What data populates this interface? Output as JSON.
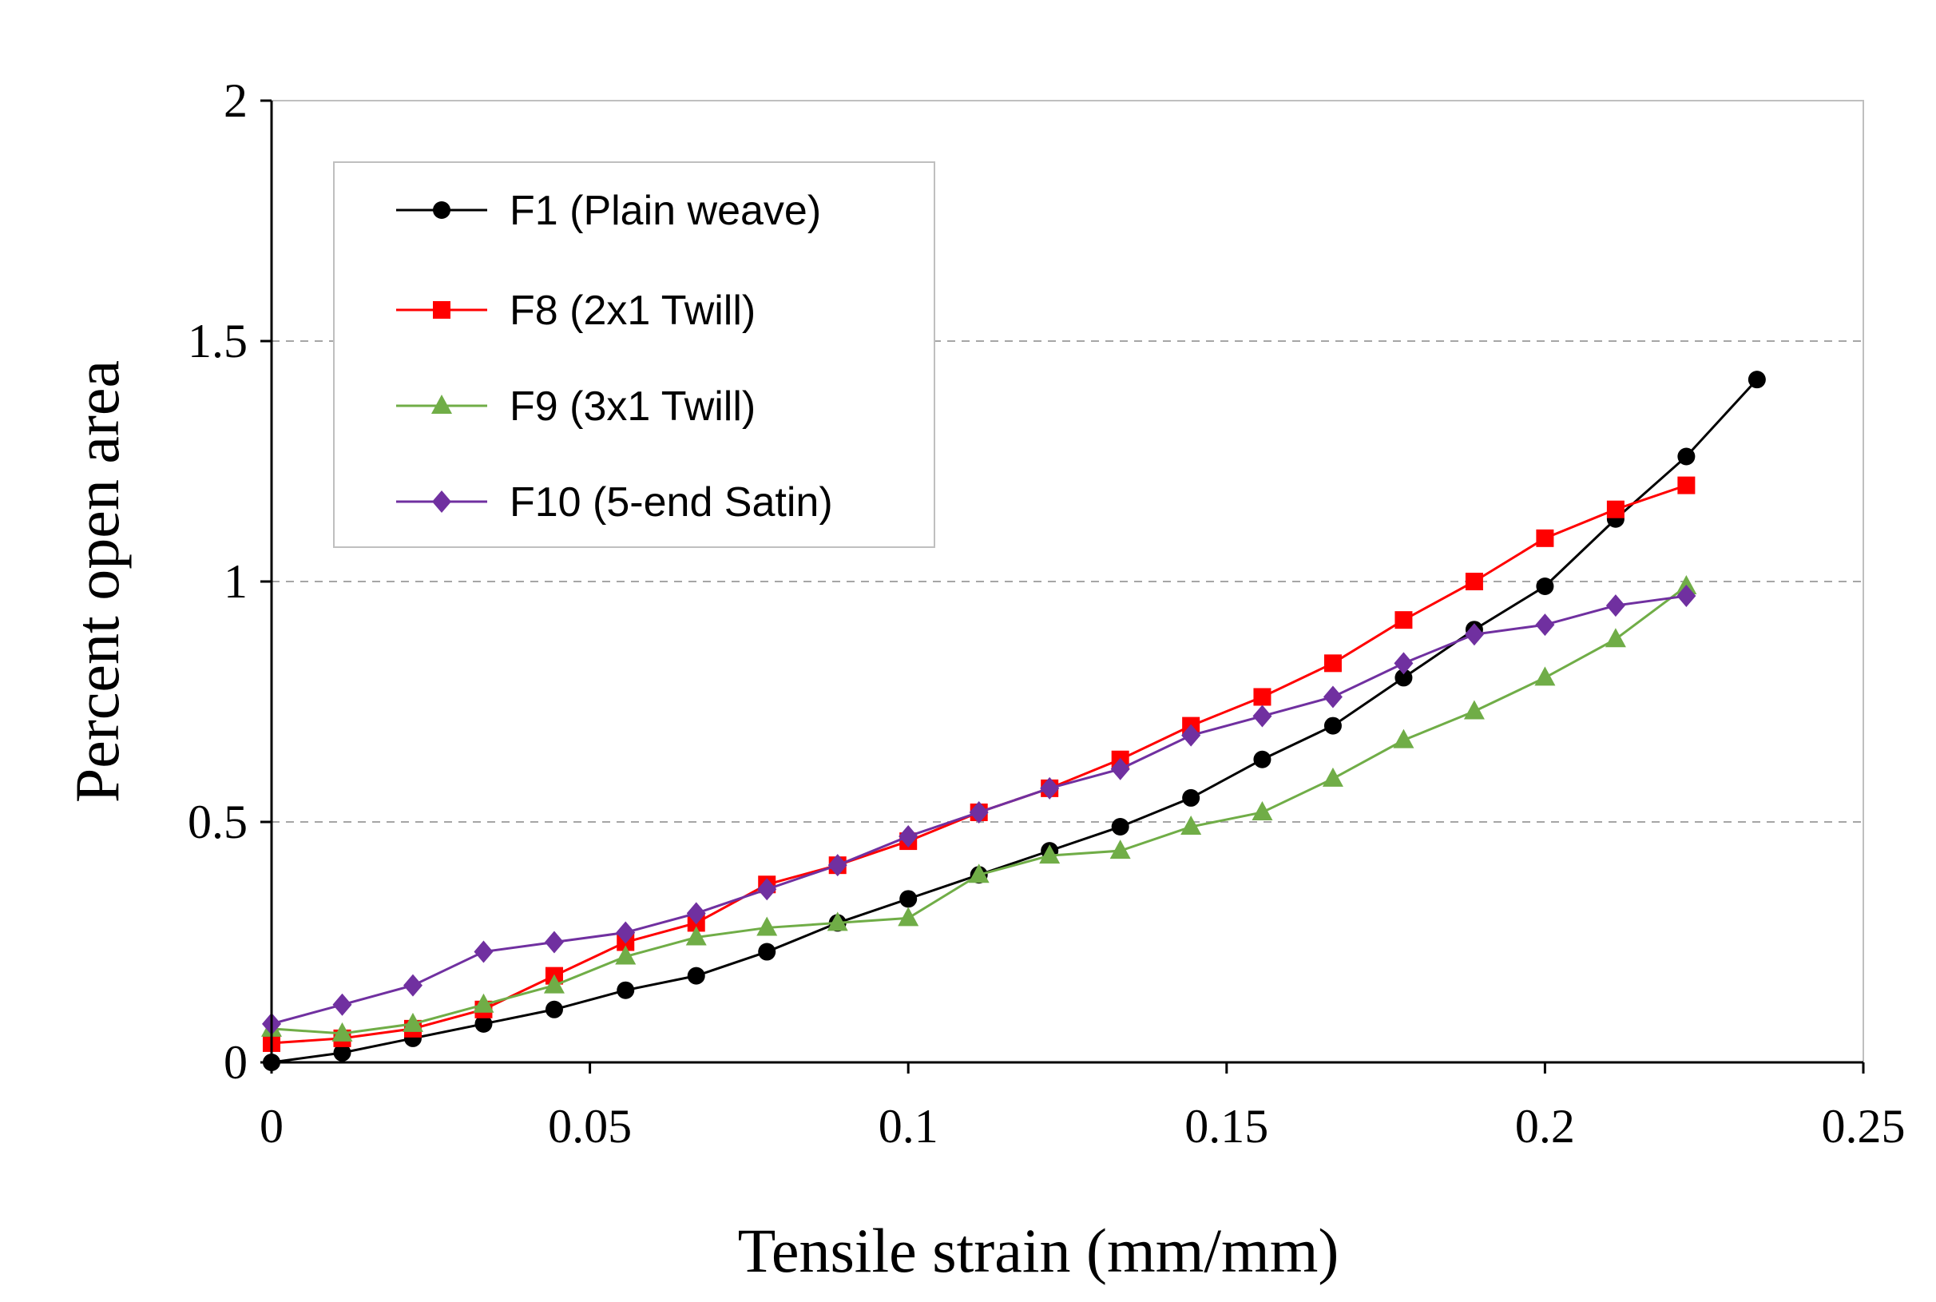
{
  "chart_data": {
    "type": "line",
    "title": "",
    "xlabel": "Tensile strain (mm/mm)",
    "ylabel": "Percent open area",
    "xlim": [
      0,
      0.25
    ],
    "ylim": [
      0,
      2
    ],
    "xticks": [
      0,
      0.05,
      0.1,
      0.15,
      0.2,
      0.25
    ],
    "xtick_labels": [
      "0",
      "0.05",
      "0.1",
      "0.15",
      "0.2",
      "0.25"
    ],
    "yticks": [
      0,
      0.5,
      1,
      1.5,
      2
    ],
    "ytick_labels": [
      "0",
      "0.5",
      "1",
      "1.5",
      "2"
    ],
    "grid": "horizontal dashed at 0.5, 1, 1.5",
    "legend_position": "top-left",
    "series": [
      {
        "name": "F1 (Plain weave)",
        "color": "#000000",
        "marker": "circle",
        "x": [
          0,
          0.0111,
          0.0222,
          0.0333,
          0.0444,
          0.0556,
          0.0667,
          0.0778,
          0.0889,
          0.1,
          0.1111,
          0.1222,
          0.1333,
          0.1444,
          0.1556,
          0.1667,
          0.1778,
          0.1889,
          0.2,
          0.2111,
          0.2222,
          0.2333
        ],
        "y": [
          0.0,
          0.02,
          0.05,
          0.08,
          0.11,
          0.15,
          0.18,
          0.23,
          0.29,
          0.34,
          0.39,
          0.44,
          0.49,
          0.55,
          0.63,
          0.7,
          0.8,
          0.9,
          0.99,
          1.13,
          1.26,
          1.42
        ]
      },
      {
        "name": "F8 (2x1 Twill)",
        "color": "#ff0000",
        "marker": "square",
        "x": [
          0,
          0.0111,
          0.0222,
          0.0333,
          0.0444,
          0.0556,
          0.0667,
          0.0778,
          0.0889,
          0.1,
          0.1111,
          0.1222,
          0.1333,
          0.1444,
          0.1556,
          0.1667,
          0.1778,
          0.1889,
          0.2,
          0.2111,
          0.2222
        ],
        "y": [
          0.04,
          0.05,
          0.07,
          0.11,
          0.18,
          0.25,
          0.29,
          0.37,
          0.41,
          0.46,
          0.52,
          0.57,
          0.63,
          0.7,
          0.76,
          0.83,
          0.92,
          1.0,
          1.09,
          1.15,
          1.2
        ]
      },
      {
        "name": "F9 (3x1 Twill)",
        "color": "#70ad47",
        "marker": "triangle",
        "x": [
          0,
          0.0111,
          0.0222,
          0.0333,
          0.0444,
          0.0556,
          0.0667,
          0.0778,
          0.0889,
          0.1,
          0.1111,
          0.1222,
          0.1333,
          0.1444,
          0.1556,
          0.1667,
          0.1778,
          0.1889,
          0.2,
          0.2111,
          0.2222
        ],
        "y": [
          0.07,
          0.06,
          0.08,
          0.12,
          0.16,
          0.22,
          0.26,
          0.28,
          0.29,
          0.3,
          0.39,
          0.43,
          0.44,
          0.49,
          0.52,
          0.59,
          0.67,
          0.73,
          0.8,
          0.88,
          0.99
        ]
      },
      {
        "name": "F10 (5-end Satin)",
        "color": "#7030a0",
        "marker": "diamond",
        "x": [
          0,
          0.0111,
          0.0222,
          0.0333,
          0.0444,
          0.0556,
          0.0667,
          0.0778,
          0.0889,
          0.1,
          0.1111,
          0.1222,
          0.1333,
          0.1444,
          0.1556,
          0.1667,
          0.1778,
          0.1889,
          0.2,
          0.2111,
          0.2222
        ],
        "y": [
          0.08,
          0.12,
          0.16,
          0.23,
          0.25,
          0.27,
          0.31,
          0.36,
          0.41,
          0.47,
          0.52,
          0.57,
          0.61,
          0.68,
          0.72,
          0.76,
          0.83,
          0.89,
          0.91,
          0.95,
          0.97
        ]
      }
    ]
  }
}
